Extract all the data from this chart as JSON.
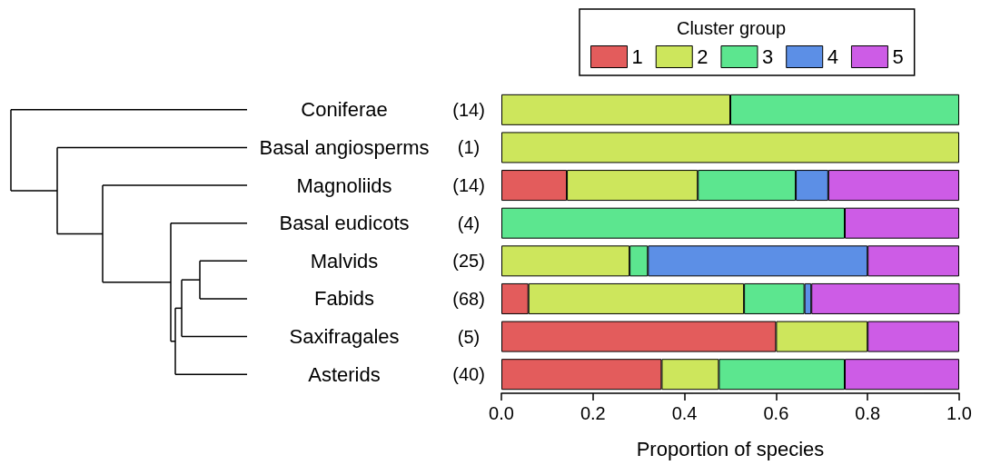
{
  "chart_data": {
    "type": "bar",
    "orientation": "horizontal",
    "stacked": true,
    "categories": [
      "Coniferae (14)",
      "Basal angiosperms (1)",
      "Magnoliids (14)",
      "Basal eudicots (4)",
      "Malvids (25)",
      "Fabids (68)",
      "Saxifragales (5)",
      "Asterids (40)"
    ],
    "series": [
      {
        "name": "1",
        "color": "#e35c5c",
        "values": [
          0,
          0,
          0.143,
          0,
          0,
          0.059,
          0.6,
          0.35
        ]
      },
      {
        "name": "2",
        "color": "#cde65c",
        "values": [
          0.5,
          1,
          0.286,
          0,
          0.28,
          0.471,
          0.2,
          0.125
        ]
      },
      {
        "name": "3",
        "color": "#5ce68f",
        "values": [
          0.5,
          0,
          0.214,
          0.75,
          0.04,
          0.132,
          0,
          0.275
        ]
      },
      {
        "name": "4",
        "color": "#5c8fe6",
        "values": [
          0,
          0,
          0.071,
          0,
          0.48,
          0.015,
          0,
          0
        ]
      },
      {
        "name": "5",
        "color": "#cd5ce6",
        "values": [
          0,
          0,
          0.286,
          0.25,
          0.2,
          0.324,
          0.2,
          0.25
        ]
      }
    ],
    "xlim": [
      0,
      1
    ],
    "xticks": [
      {
        "value": 0,
        "label": "0.0"
      },
      0.2,
      0.4,
      0.6,
      0.8,
      {
        "value": 1,
        "label": "1.0"
      }
    ],
    "xlabel": "Proportion of species",
    "legend_title": "Cluster group",
    "legend": "top"
  }
}
